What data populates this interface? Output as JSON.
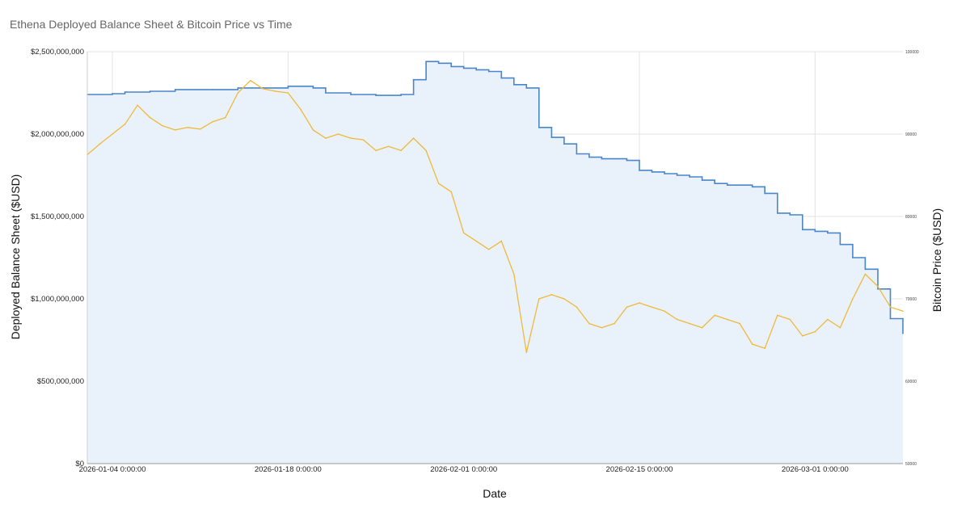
{
  "chart_data": {
    "type": "line",
    "title": "Ethena Deployed Balance Sheet & Bitcoin Price vs Time",
    "xlabel": "Date",
    "ylabel_left": "Deployed Balance Sheet ($USD)",
    "ylabel_right": "Bitcoin Price ($USD)",
    "grid": true,
    "x_range": [
      "2026-01-02",
      "2026-03-08"
    ],
    "x_ticks": [
      {
        "date": "2026-01-04",
        "label": "2026-01-04 0:00:00"
      },
      {
        "date": "2026-01-18",
        "label": "2026-01-18 0:00:00"
      },
      {
        "date": "2026-02-01",
        "label": "2026-02-01 0:00:00"
      },
      {
        "date": "2026-02-15",
        "label": "2026-02-15 0:00:00"
      },
      {
        "date": "2026-03-01",
        "label": "2026-03-01 0:00:00"
      }
    ],
    "y_left": {
      "range": [
        0,
        2500000000
      ],
      "ticks": [
        {
          "value": 0,
          "label": "$0"
        },
        {
          "value": 500000000,
          "label": "$500,000,000"
        },
        {
          "value": 1000000000,
          "label": "$1,000,000,000"
        },
        {
          "value": 1500000000,
          "label": "$1,500,000,000"
        },
        {
          "value": 2000000000,
          "label": "$2,000,000,000"
        },
        {
          "value": 2500000000,
          "label": "$2,500,000,000"
        }
      ]
    },
    "y_right": {
      "range": [
        50000,
        100000
      ],
      "ticks": [
        {
          "value": 50000,
          "label": "50000"
        },
        {
          "value": 60000,
          "label": "60000"
        },
        {
          "value": 70000,
          "label": "70000"
        },
        {
          "value": 80000,
          "label": "80000"
        },
        {
          "value": 90000,
          "label": "90000"
        },
        {
          "value": 100000,
          "label": "100000"
        }
      ]
    },
    "series": [
      {
        "axis": "left",
        "color": "#4a86c8",
        "fill": "#e9f1fb",
        "step": true,
        "points": [
          [
            "2026-01-02",
            2240000000
          ],
          [
            "2026-01-04",
            2245000000
          ],
          [
            "2026-01-05",
            2255000000
          ],
          [
            "2026-01-07",
            2260000000
          ],
          [
            "2026-01-09",
            2270000000
          ],
          [
            "2026-01-12",
            2270000000
          ],
          [
            "2026-01-14",
            2280000000
          ],
          [
            "2026-01-18",
            2290000000
          ],
          [
            "2026-01-20",
            2280000000
          ],
          [
            "2026-01-21",
            2250000000
          ],
          [
            "2026-01-23",
            2240000000
          ],
          [
            "2026-01-25",
            2235000000
          ],
          [
            "2026-01-27",
            2240000000
          ],
          [
            "2026-01-28",
            2330000000
          ],
          [
            "2026-01-29",
            2440000000
          ],
          [
            "2026-01-30",
            2430000000
          ],
          [
            "2026-01-31",
            2410000000
          ],
          [
            "2026-02-01",
            2400000000
          ],
          [
            "2026-02-02",
            2390000000
          ],
          [
            "2026-02-03",
            2380000000
          ],
          [
            "2026-02-04",
            2340000000
          ],
          [
            "2026-02-05",
            2300000000
          ],
          [
            "2026-02-06",
            2280000000
          ],
          [
            "2026-02-07",
            2040000000
          ],
          [
            "2026-02-08",
            1980000000
          ],
          [
            "2026-02-09",
            1940000000
          ],
          [
            "2026-02-10",
            1880000000
          ],
          [
            "2026-02-11",
            1860000000
          ],
          [
            "2026-02-12",
            1850000000
          ],
          [
            "2026-02-13",
            1850000000
          ],
          [
            "2026-02-14",
            1840000000
          ],
          [
            "2026-02-15",
            1780000000
          ],
          [
            "2026-02-16",
            1770000000
          ],
          [
            "2026-02-17",
            1760000000
          ],
          [
            "2026-02-18",
            1750000000
          ],
          [
            "2026-02-19",
            1740000000
          ],
          [
            "2026-02-20",
            1720000000
          ],
          [
            "2026-02-21",
            1700000000
          ],
          [
            "2026-02-22",
            1690000000
          ],
          [
            "2026-02-23",
            1690000000
          ],
          [
            "2026-02-24",
            1680000000
          ],
          [
            "2026-02-25",
            1640000000
          ],
          [
            "2026-02-26",
            1520000000
          ],
          [
            "2026-02-27",
            1510000000
          ],
          [
            "2026-02-28",
            1420000000
          ],
          [
            "2026-03-01",
            1410000000
          ],
          [
            "2026-03-02",
            1400000000
          ],
          [
            "2026-03-03",
            1330000000
          ],
          [
            "2026-03-04",
            1250000000
          ],
          [
            "2026-03-05",
            1180000000
          ],
          [
            "2026-03-06",
            1060000000
          ],
          [
            "2026-03-07",
            880000000
          ],
          [
            "2026-03-08",
            790000000
          ]
        ]
      },
      {
        "axis": "right",
        "color": "#f0b93a",
        "step": false,
        "points": [
          [
            "2026-01-02",
            87500
          ],
          [
            "2026-01-03",
            88800
          ],
          [
            "2026-01-04",
            90000
          ],
          [
            "2026-01-05",
            91200
          ],
          [
            "2026-01-06",
            93500
          ],
          [
            "2026-01-07",
            92000
          ],
          [
            "2026-01-08",
            91000
          ],
          [
            "2026-01-09",
            90500
          ],
          [
            "2026-01-10",
            90800
          ],
          [
            "2026-01-11",
            90600
          ],
          [
            "2026-01-12",
            91500
          ],
          [
            "2026-01-13",
            92000
          ],
          [
            "2026-01-14",
            95000
          ],
          [
            "2026-01-15",
            96500
          ],
          [
            "2026-01-16",
            95500
          ],
          [
            "2026-01-17",
            95200
          ],
          [
            "2026-01-18",
            95000
          ],
          [
            "2026-01-19",
            93000
          ],
          [
            "2026-01-20",
            90500
          ],
          [
            "2026-01-21",
            89500
          ],
          [
            "2026-01-22",
            90000
          ],
          [
            "2026-01-23",
            89500
          ],
          [
            "2026-01-24",
            89300
          ],
          [
            "2026-01-25",
            88000
          ],
          [
            "2026-01-26",
            88500
          ],
          [
            "2026-01-27",
            88000
          ],
          [
            "2026-01-28",
            89500
          ],
          [
            "2026-01-29",
            88000
          ],
          [
            "2026-01-30",
            84000
          ],
          [
            "2026-01-31",
            83000
          ],
          [
            "2026-02-01",
            78000
          ],
          [
            "2026-02-02",
            77000
          ],
          [
            "2026-02-03",
            76000
          ],
          [
            "2026-02-04",
            77000
          ],
          [
            "2026-02-05",
            73000
          ],
          [
            "2026-02-06",
            63500
          ],
          [
            "2026-02-07",
            70000
          ],
          [
            "2026-02-08",
            70500
          ],
          [
            "2026-02-09",
            70000
          ],
          [
            "2026-02-10",
            69000
          ],
          [
            "2026-02-11",
            67000
          ],
          [
            "2026-02-12",
            66500
          ],
          [
            "2026-02-13",
            67000
          ],
          [
            "2026-02-14",
            69000
          ],
          [
            "2026-02-15",
            69500
          ],
          [
            "2026-02-16",
            69000
          ],
          [
            "2026-02-17",
            68500
          ],
          [
            "2026-02-18",
            67500
          ],
          [
            "2026-02-19",
            67000
          ],
          [
            "2026-02-20",
            66500
          ],
          [
            "2026-02-21",
            68000
          ],
          [
            "2026-02-22",
            67500
          ],
          [
            "2026-02-23",
            67000
          ],
          [
            "2026-02-24",
            64500
          ],
          [
            "2026-02-25",
            64000
          ],
          [
            "2026-02-26",
            68000
          ],
          [
            "2026-02-27",
            67500
          ],
          [
            "2026-02-28",
            65500
          ],
          [
            "2026-03-01",
            66000
          ],
          [
            "2026-03-02",
            67500
          ],
          [
            "2026-03-03",
            66500
          ],
          [
            "2026-03-04",
            70000
          ],
          [
            "2026-03-05",
            73000
          ],
          [
            "2026-03-06",
            71500
          ],
          [
            "2026-03-07",
            69000
          ],
          [
            "2026-03-08",
            68500
          ]
        ]
      }
    ]
  }
}
